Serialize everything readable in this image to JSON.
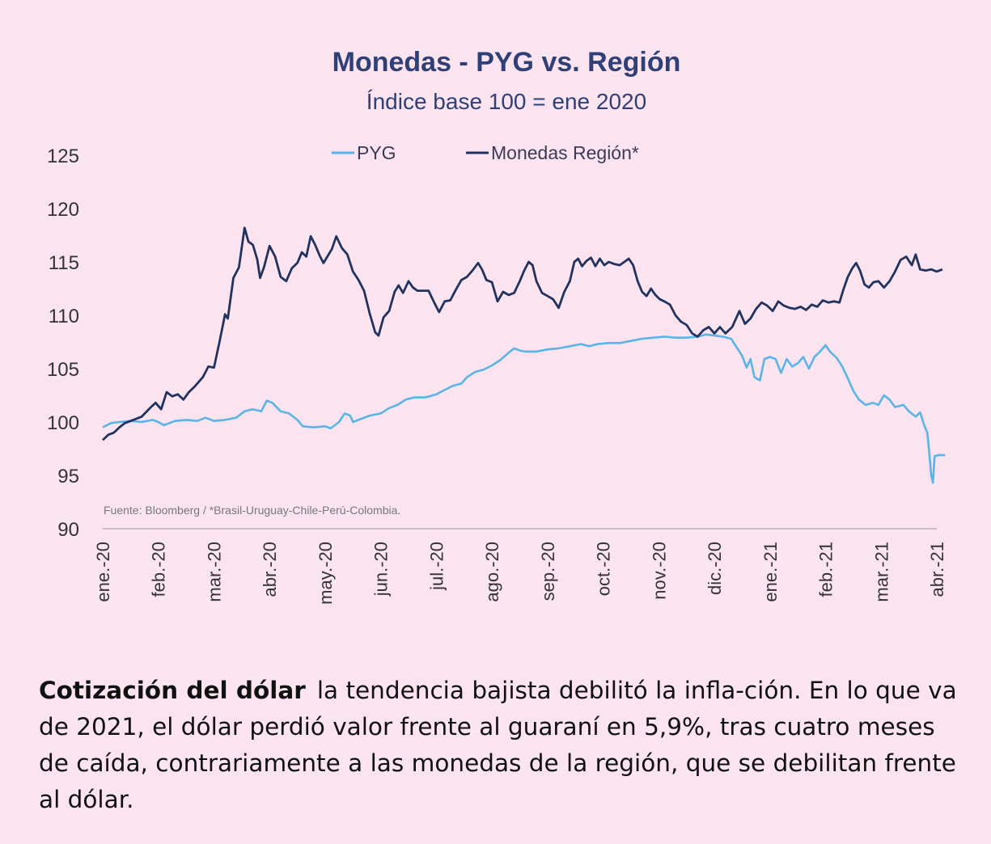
{
  "chart_data": {
    "type": "line",
    "title": "Monedas - PYG vs. Región",
    "subtitle": "Índice base 100 = ene 2020",
    "source": "Fuente: Bloomberg / *Brasil-Uruguay-Chile-Perú-Colombia.",
    "ylim": [
      90,
      125
    ],
    "yticks": [
      125,
      120,
      115,
      110,
      105,
      100,
      95,
      90
    ],
    "xlim": [
      0,
      15
    ],
    "xticks": [
      {
        "x": 0,
        "label": "ene.-20"
      },
      {
        "x": 1,
        "label": "feb.-20"
      },
      {
        "x": 2,
        "label": "mar.-20"
      },
      {
        "x": 3,
        "label": "abr.-20"
      },
      {
        "x": 4,
        "label": "may.-20"
      },
      {
        "x": 5,
        "label": "jun.-20"
      },
      {
        "x": 6,
        "label": "jul.-20"
      },
      {
        "x": 7,
        "label": "ago.-20"
      },
      {
        "x": 8,
        "label": "sep.-20"
      },
      {
        "x": 9,
        "label": "oct.-20"
      },
      {
        "x": 10,
        "label": "nov.-20"
      },
      {
        "x": 11,
        "label": "dic.-20"
      },
      {
        "x": 12,
        "label": "ene.-21"
      },
      {
        "x": 13,
        "label": "feb.-21"
      },
      {
        "x": 14,
        "label": "mar.-21"
      },
      {
        "x": 15,
        "label": "abr.-21"
      }
    ],
    "legend_position": "top-center",
    "grid": false,
    "series": [
      {
        "name": "PYG",
        "color": "#5ab4e6",
        "points": [
          [
            0,
            99.5
          ],
          [
            0.15,
            99.9
          ],
          [
            0.3,
            100.0
          ],
          [
            0.5,
            100.1
          ],
          [
            0.7,
            100.0
          ],
          [
            0.9,
            100.2
          ],
          [
            1.0,
            100.0
          ],
          [
            1.1,
            99.7
          ],
          [
            1.3,
            100.1
          ],
          [
            1.5,
            100.2
          ],
          [
            1.7,
            100.1
          ],
          [
            1.85,
            100.4
          ],
          [
            2.0,
            100.1
          ],
          [
            2.2,
            100.2
          ],
          [
            2.4,
            100.4
          ],
          [
            2.55,
            101.0
          ],
          [
            2.7,
            101.2
          ],
          [
            2.85,
            101.0
          ],
          [
            2.95,
            102.0
          ],
          [
            3.05,
            101.8
          ],
          [
            3.2,
            101.0
          ],
          [
            3.35,
            100.8
          ],
          [
            3.5,
            100.2
          ],
          [
            3.6,
            99.6
          ],
          [
            3.8,
            99.5
          ],
          [
            4.0,
            99.6
          ],
          [
            4.1,
            99.4
          ],
          [
            4.25,
            100.0
          ],
          [
            4.35,
            100.8
          ],
          [
            4.45,
            100.6
          ],
          [
            4.5,
            100.0
          ],
          [
            4.65,
            100.3
          ],
          [
            4.8,
            100.6
          ],
          [
            5.0,
            100.8
          ],
          [
            5.15,
            101.3
          ],
          [
            5.3,
            101.6
          ],
          [
            5.45,
            102.1
          ],
          [
            5.6,
            102.3
          ],
          [
            5.8,
            102.3
          ],
          [
            6.0,
            102.6
          ],
          [
            6.15,
            103.0
          ],
          [
            6.3,
            103.4
          ],
          [
            6.45,
            103.6
          ],
          [
            6.55,
            104.2
          ],
          [
            6.7,
            104.7
          ],
          [
            6.85,
            104.9
          ],
          [
            7.0,
            105.3
          ],
          [
            7.15,
            105.8
          ],
          [
            7.3,
            106.5
          ],
          [
            7.4,
            106.9
          ],
          [
            7.5,
            106.7
          ],
          [
            7.6,
            106.6
          ],
          [
            7.8,
            106.6
          ],
          [
            8.0,
            106.8
          ],
          [
            8.2,
            106.9
          ],
          [
            8.4,
            107.1
          ],
          [
            8.6,
            107.3
          ],
          [
            8.75,
            107.1
          ],
          [
            8.9,
            107.3
          ],
          [
            9.1,
            107.4
          ],
          [
            9.3,
            107.4
          ],
          [
            9.5,
            107.6
          ],
          [
            9.7,
            107.8
          ],
          [
            9.9,
            107.9
          ],
          [
            10.1,
            108.0
          ],
          [
            10.3,
            107.9
          ],
          [
            10.5,
            107.9
          ],
          [
            10.7,
            108.0
          ],
          [
            10.85,
            108.2
          ],
          [
            11.0,
            108.1
          ],
          [
            11.15,
            108.0
          ],
          [
            11.3,
            107.8
          ],
          [
            11.4,
            107.0
          ],
          [
            11.5,
            106.2
          ],
          [
            11.58,
            105.1
          ],
          [
            11.65,
            105.9
          ],
          [
            11.72,
            104.2
          ],
          [
            11.82,
            103.9
          ],
          [
            11.9,
            105.9
          ],
          [
            12.0,
            106.1
          ],
          [
            12.1,
            105.9
          ],
          [
            12.2,
            104.6
          ],
          [
            12.3,
            105.9
          ],
          [
            12.4,
            105.2
          ],
          [
            12.5,
            105.5
          ],
          [
            12.6,
            106.1
          ],
          [
            12.7,
            105.0
          ],
          [
            12.8,
            106.1
          ],
          [
            12.9,
            106.6
          ],
          [
            13.0,
            107.2
          ],
          [
            13.08,
            106.6
          ],
          [
            13.2,
            106.0
          ],
          [
            13.3,
            105.2
          ],
          [
            13.4,
            104.1
          ],
          [
            13.5,
            102.9
          ],
          [
            13.6,
            102.1
          ],
          [
            13.72,
            101.6
          ],
          [
            13.85,
            101.8
          ],
          [
            13.95,
            101.6
          ],
          [
            14.05,
            102.5
          ],
          [
            14.15,
            102.1
          ],
          [
            14.25,
            101.4
          ],
          [
            14.4,
            101.6
          ],
          [
            14.5,
            101.0
          ],
          [
            14.62,
            100.5
          ],
          [
            14.7,
            100.9
          ],
          [
            14.78,
            99.6
          ],
          [
            14.83,
            99.0
          ],
          [
            14.87,
            96.8
          ],
          [
            14.9,
            95.0
          ],
          [
            14.93,
            94.3
          ],
          [
            14.96,
            96.8
          ],
          [
            15.05,
            96.9
          ],
          [
            15.15,
            96.9
          ]
        ]
      },
      {
        "name": "Monedas Región*",
        "color": "#22325f",
        "points": [
          [
            0,
            98.3
          ],
          [
            0.1,
            98.8
          ],
          [
            0.2,
            99.0
          ],
          [
            0.3,
            99.5
          ],
          [
            0.4,
            99.9
          ],
          [
            0.55,
            100.2
          ],
          [
            0.7,
            100.5
          ],
          [
            0.85,
            101.3
          ],
          [
            0.95,
            101.8
          ],
          [
            1.05,
            101.2
          ],
          [
            1.15,
            102.8
          ],
          [
            1.25,
            102.4
          ],
          [
            1.35,
            102.6
          ],
          [
            1.45,
            102.1
          ],
          [
            1.55,
            102.8
          ],
          [
            1.65,
            103.3
          ],
          [
            1.8,
            104.2
          ],
          [
            1.9,
            105.2
          ],
          [
            2.0,
            105.1
          ],
          [
            2.1,
            107.5
          ],
          [
            2.2,
            110.1
          ],
          [
            2.25,
            109.7
          ],
          [
            2.35,
            113.5
          ],
          [
            2.45,
            114.5
          ],
          [
            2.55,
            118.2
          ],
          [
            2.62,
            116.9
          ],
          [
            2.7,
            116.6
          ],
          [
            2.78,
            115.2
          ],
          [
            2.83,
            113.5
          ],
          [
            2.9,
            114.5
          ],
          [
            3.0,
            116.5
          ],
          [
            3.1,
            115.5
          ],
          [
            3.2,
            113.6
          ],
          [
            3.3,
            113.2
          ],
          [
            3.4,
            114.4
          ],
          [
            3.5,
            114.9
          ],
          [
            3.58,
            115.9
          ],
          [
            3.66,
            115.5
          ],
          [
            3.74,
            117.4
          ],
          [
            3.82,
            116.6
          ],
          [
            3.9,
            115.6
          ],
          [
            3.97,
            114.9
          ],
          [
            4.05,
            115.6
          ],
          [
            4.12,
            116.2
          ],
          [
            4.2,
            117.4
          ],
          [
            4.3,
            116.3
          ],
          [
            4.4,
            115.7
          ],
          [
            4.5,
            114.1
          ],
          [
            4.6,
            113.3
          ],
          [
            4.7,
            112.3
          ],
          [
            4.8,
            110.2
          ],
          [
            4.9,
            108.4
          ],
          [
            4.96,
            108.1
          ],
          [
            5.05,
            109.8
          ],
          [
            5.15,
            110.4
          ],
          [
            5.25,
            112.2
          ],
          [
            5.32,
            112.8
          ],
          [
            5.4,
            112.1
          ],
          [
            5.5,
            113.2
          ],
          [
            5.58,
            112.6
          ],
          [
            5.66,
            112.3
          ],
          [
            5.76,
            112.3
          ],
          [
            5.86,
            112.3
          ],
          [
            5.96,
            111.2
          ],
          [
            6.05,
            110.3
          ],
          [
            6.15,
            111.3
          ],
          [
            6.25,
            111.4
          ],
          [
            6.35,
            112.4
          ],
          [
            6.45,
            113.3
          ],
          [
            6.55,
            113.6
          ],
          [
            6.65,
            114.2
          ],
          [
            6.75,
            114.9
          ],
          [
            6.82,
            114.3
          ],
          [
            6.9,
            113.3
          ],
          [
            7.0,
            113.1
          ],
          [
            7.1,
            111.3
          ],
          [
            7.2,
            112.2
          ],
          [
            7.3,
            111.9
          ],
          [
            7.4,
            112.1
          ],
          [
            7.5,
            113.2
          ],
          [
            7.58,
            114.2
          ],
          [
            7.66,
            115.0
          ],
          [
            7.73,
            114.7
          ],
          [
            7.8,
            113.2
          ],
          [
            7.9,
            112.1
          ],
          [
            8.0,
            111.8
          ],
          [
            8.1,
            111.5
          ],
          [
            8.2,
            110.7
          ],
          [
            8.3,
            112.2
          ],
          [
            8.4,
            113.2
          ],
          [
            8.48,
            115.0
          ],
          [
            8.55,
            115.3
          ],
          [
            8.62,
            114.6
          ],
          [
            8.7,
            115.1
          ],
          [
            8.78,
            115.4
          ],
          [
            8.86,
            114.6
          ],
          [
            8.94,
            115.3
          ],
          [
            9.02,
            114.7
          ],
          [
            9.1,
            115.0
          ],
          [
            9.2,
            114.8
          ],
          [
            9.3,
            114.7
          ],
          [
            9.38,
            115.0
          ],
          [
            9.46,
            115.3
          ],
          [
            9.54,
            114.7
          ],
          [
            9.62,
            113.2
          ],
          [
            9.7,
            112.2
          ],
          [
            9.78,
            111.8
          ],
          [
            9.86,
            112.5
          ],
          [
            9.94,
            111.9
          ],
          [
            10.02,
            111.5
          ],
          [
            10.1,
            111.3
          ],
          [
            10.2,
            111.0
          ],
          [
            10.3,
            110.0
          ],
          [
            10.4,
            109.4
          ],
          [
            10.5,
            109.1
          ],
          [
            10.6,
            108.3
          ],
          [
            10.7,
            108.0
          ],
          [
            10.8,
            108.6
          ],
          [
            10.9,
            108.9
          ],
          [
            11.0,
            108.3
          ],
          [
            11.1,
            108.9
          ],
          [
            11.2,
            108.3
          ],
          [
            11.32,
            108.9
          ],
          [
            11.45,
            110.4
          ],
          [
            11.55,
            109.2
          ],
          [
            11.65,
            109.7
          ],
          [
            11.75,
            110.6
          ],
          [
            11.85,
            111.2
          ],
          [
            11.95,
            110.9
          ],
          [
            12.05,
            110.4
          ],
          [
            12.15,
            111.3
          ],
          [
            12.25,
            110.9
          ],
          [
            12.35,
            110.7
          ],
          [
            12.45,
            110.6
          ],
          [
            12.55,
            110.8
          ],
          [
            12.65,
            110.5
          ],
          [
            12.75,
            111.0
          ],
          [
            12.85,
            110.8
          ],
          [
            12.95,
            111.4
          ],
          [
            13.05,
            111.2
          ],
          [
            13.15,
            111.3
          ],
          [
            13.25,
            111.2
          ],
          [
            13.32,
            112.4
          ],
          [
            13.4,
            113.6
          ],
          [
            13.48,
            114.4
          ],
          [
            13.55,
            114.9
          ],
          [
            13.62,
            114.2
          ],
          [
            13.7,
            112.9
          ],
          [
            13.78,
            112.6
          ],
          [
            13.86,
            113.1
          ],
          [
            13.95,
            113.2
          ],
          [
            14.05,
            112.6
          ],
          [
            14.15,
            113.2
          ],
          [
            14.25,
            114.1
          ],
          [
            14.35,
            115.2
          ],
          [
            14.45,
            115.5
          ],
          [
            14.55,
            114.7
          ],
          [
            14.62,
            115.7
          ],
          [
            14.7,
            114.3
          ],
          [
            14.8,
            114.2
          ],
          [
            14.9,
            114.3
          ],
          [
            15.0,
            114.1
          ],
          [
            15.1,
            114.3
          ]
        ]
      }
    ]
  },
  "caption": {
    "lead": "Cotización del dólar",
    "text": "la tendencia bajista debilitó la infla-ción. En lo que va de 2021, el dólar perdió valor frente al guaraní en 5,9%, tras cuatro meses de caída, contrariamente a las monedas de la región, que se debilitan frente al dólar."
  }
}
